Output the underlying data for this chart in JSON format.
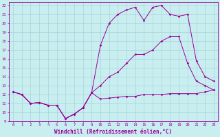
{
  "xlabel": "Windchill (Refroidissement éolien,°C)",
  "line_color": "#990099",
  "bg_color": "#c8eef0",
  "grid_color": "#a8d4d8",
  "xlim": [
    -0.5,
    23.5
  ],
  "ylim": [
    9,
    22.4
  ],
  "xticks": [
    0,
    1,
    2,
    3,
    4,
    5,
    6,
    7,
    8,
    9,
    10,
    11,
    12,
    13,
    14,
    15,
    16,
    17,
    18,
    19,
    20,
    21,
    22,
    23
  ],
  "yticks": [
    9,
    10,
    11,
    12,
    13,
    14,
    15,
    16,
    17,
    18,
    19,
    20,
    21,
    22
  ],
  "line1_x": [
    0,
    1,
    2,
    3,
    4,
    5,
    6,
    7,
    8,
    9,
    10,
    11,
    12,
    13,
    14,
    15,
    16,
    17,
    18,
    19,
    20,
    21,
    22,
    23
  ],
  "line1_y": [
    12.3,
    12.0,
    11.0,
    11.1,
    10.8,
    10.8,
    9.3,
    9.8,
    10.5,
    12.2,
    11.5,
    11.6,
    11.7,
    11.8,
    11.8,
    12.0,
    12.0,
    12.0,
    12.1,
    12.1,
    12.1,
    12.1,
    12.3,
    12.5
  ],
  "line2_x": [
    0,
    1,
    2,
    3,
    4,
    5,
    6,
    7,
    8,
    9,
    10,
    11,
    12,
    13,
    14,
    15,
    16,
    17,
    18,
    19,
    20,
    21,
    22,
    23
  ],
  "line2_y": [
    12.3,
    12.0,
    11.0,
    11.1,
    10.8,
    10.8,
    9.3,
    9.8,
    10.5,
    12.2,
    13.0,
    14.0,
    14.5,
    15.5,
    16.5,
    16.5,
    17.0,
    18.0,
    18.5,
    18.5,
    15.5,
    13.5,
    13.0,
    12.5
  ],
  "line3_x": [
    0,
    1,
    2,
    3,
    4,
    5,
    6,
    7,
    8,
    9,
    10,
    11,
    12,
    13,
    14,
    15,
    16,
    17,
    18,
    19,
    20,
    21,
    22,
    23
  ],
  "line3_y": [
    12.3,
    12.0,
    11.0,
    11.1,
    10.8,
    10.8,
    9.3,
    9.8,
    10.5,
    12.2,
    17.5,
    20.0,
    21.0,
    21.5,
    21.8,
    20.3,
    21.8,
    22.0,
    21.0,
    20.8,
    21.0,
    15.8,
    14.0,
    13.5
  ],
  "marker_size": 1.8,
  "line_width": 0.7,
  "tick_fontsize": 4.0,
  "xlabel_fontsize": 5.5
}
